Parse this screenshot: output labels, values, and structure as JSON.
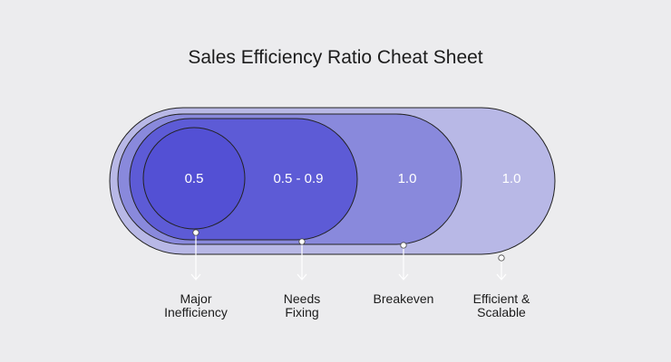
{
  "title": "Sales Efficiency Ratio Cheat Sheet",
  "colors": {
    "background": "#ececee",
    "tier4": "#b8b8e6",
    "tier3": "#8989dc",
    "tier2": "#5d5bd6",
    "tier1": "#5350d4",
    "outline": "#222222",
    "value_text": "#ffffff",
    "arrow": "#ffffff"
  },
  "tiers": [
    {
      "value": "0.5",
      "label": "Major\nInefficiency"
    },
    {
      "value": "0.5 - 0.9",
      "label": "Needs\nFixing"
    },
    {
      "value": "1.0",
      "label": "Breakeven"
    },
    {
      "value": "1.0",
      "label": "Efficient &\nScalable"
    }
  ]
}
